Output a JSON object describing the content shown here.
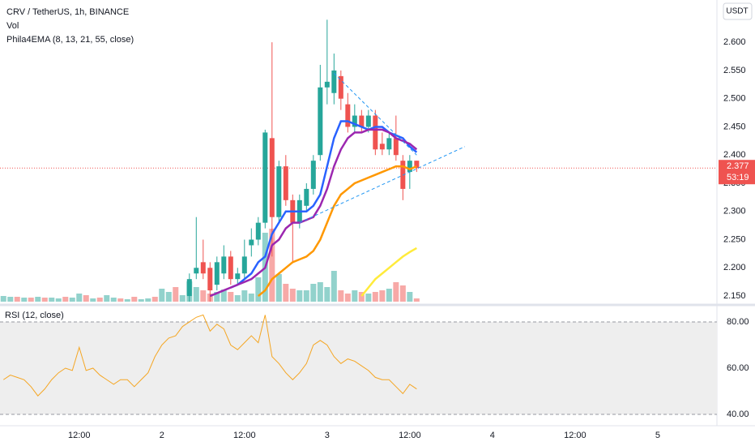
{
  "chart_data": {
    "type": "candlestick",
    "title": "CRV / TetherUS, 1h, BINANCE",
    "volume_label": "Vol",
    "indicator_label": "Phila4EMA (8, 13, 21, 55, close)",
    "currency": "USDT",
    "last_price": 2.377,
    "countdown": "53:19",
    "color_up": "#26a69a",
    "color_down": "#ef5350",
    "xlim": [
      -23.5,
      80.6
    ],
    "xticks": [
      {
        "value": -12,
        "label": "12:00"
      },
      {
        "value": 0,
        "label": "2"
      },
      {
        "value": 12,
        "label": "12:00"
      },
      {
        "value": 24,
        "label": "3"
      },
      {
        "value": 36,
        "label": "12:00"
      },
      {
        "value": 48,
        "label": "4"
      },
      {
        "value": 60,
        "label": "12:00"
      },
      {
        "value": 72,
        "label": "5"
      }
    ],
    "ylim": [
      2.14,
      2.675
    ],
    "yticks": [
      {
        "value": 2.15,
        "label": "2.150"
      },
      {
        "value": 2.2,
        "label": "2.200"
      },
      {
        "value": 2.25,
        "label": "2.250"
      },
      {
        "value": 2.3,
        "label": "2.300"
      },
      {
        "value": 2.35,
        "label": "2.350"
      },
      {
        "value": 2.4,
        "label": "2.400"
      },
      {
        "value": 2.45,
        "label": "2.450"
      },
      {
        "value": 2.5,
        "label": "2.500"
      },
      {
        "value": 2.55,
        "label": "2.550"
      },
      {
        "value": 2.6,
        "label": "2.600"
      }
    ],
    "candles": {
      "x": [
        4,
        5,
        6,
        7,
        8,
        9,
        10,
        11,
        12,
        13,
        14,
        15,
        16,
        17,
        18,
        19,
        20,
        21,
        22,
        23,
        24,
        25,
        26,
        27,
        28,
        29,
        30,
        31,
        32,
        33,
        34,
        35,
        36,
        37
      ],
      "open": [
        2.15,
        2.19,
        2.21,
        2.2,
        2.17,
        2.19,
        2.22,
        2.18,
        2.19,
        2.24,
        2.25,
        2.28,
        2.43,
        2.29,
        2.38,
        2.32,
        2.28,
        2.31,
        2.34,
        2.4,
        2.52,
        2.51,
        2.54,
        2.49,
        2.45,
        2.47,
        2.45,
        2.47,
        2.42,
        2.41,
        2.43,
        2.39,
        2.37,
        2.39
      ],
      "high": [
        2.19,
        2.29,
        2.25,
        2.21,
        2.22,
        2.24,
        2.23,
        2.2,
        2.25,
        2.27,
        2.29,
        2.445,
        2.6,
        2.39,
        2.4,
        2.33,
        2.33,
        2.35,
        2.4,
        2.56,
        2.64,
        2.58,
        2.55,
        2.51,
        2.49,
        2.48,
        2.48,
        2.48,
        2.44,
        2.44,
        2.47,
        2.4,
        2.4,
        2.39
      ],
      "low": [
        2.14,
        2.18,
        2.18,
        2.14,
        2.16,
        2.18,
        2.17,
        2.17,
        2.18,
        2.22,
        2.24,
        2.27,
        2.22,
        2.28,
        2.31,
        2.21,
        2.27,
        2.3,
        2.33,
        2.39,
        2.49,
        2.49,
        2.48,
        2.44,
        2.44,
        2.44,
        2.44,
        2.4,
        2.4,
        2.4,
        2.39,
        2.32,
        2.34,
        2.37
      ],
      "close": [
        2.18,
        2.2,
        2.19,
        2.16,
        2.21,
        2.22,
        2.18,
        2.19,
        2.22,
        2.25,
        2.28,
        2.44,
        2.29,
        2.38,
        2.32,
        2.28,
        2.32,
        2.34,
        2.39,
        2.52,
        2.53,
        2.55,
        2.5,
        2.45,
        2.47,
        2.45,
        2.47,
        2.41,
        2.41,
        2.43,
        2.4,
        2.34,
        2.39,
        2.377
      ]
    },
    "volume": {
      "x": [
        -23,
        -22,
        -21,
        -20,
        -19,
        -18,
        -17,
        -16,
        -15,
        -14,
        -13,
        -12,
        -11,
        -10,
        -9,
        -8,
        -7,
        -6,
        -5,
        -4,
        -3,
        -2,
        -1,
        0,
        1,
        2,
        3,
        4,
        5,
        6,
        7,
        8,
        9,
        10,
        11,
        12,
        13,
        14,
        15,
        16,
        17,
        18,
        19,
        20,
        21,
        22,
        23,
        24,
        25,
        26,
        27,
        28,
        29,
        30,
        31,
        32,
        33,
        34,
        35,
        36,
        37
      ],
      "values": [
        7,
        6,
        6,
        5,
        5,
        6,
        5,
        5,
        4,
        6,
        5,
        10,
        8,
        4,
        5,
        8,
        5,
        4,
        3,
        6,
        3,
        4,
        6,
        16,
        12,
        18,
        8,
        25,
        18,
        14,
        10,
        12,
        15,
        12,
        8,
        14,
        10,
        30,
        85,
        90,
        34,
        22,
        16,
        14,
        14,
        22,
        24,
        18,
        38,
        14,
        10,
        14,
        12,
        10,
        12,
        14,
        16,
        24,
        20,
        12,
        4
      ],
      "up": [
        true,
        true,
        false,
        true,
        false,
        true,
        false,
        true,
        true,
        false,
        true,
        true,
        false,
        true,
        false,
        true,
        true,
        false,
        true,
        false,
        true,
        true,
        false,
        true,
        true,
        false,
        true,
        true,
        true,
        false,
        false,
        true,
        true,
        false,
        true,
        true,
        true,
        true,
        true,
        false,
        true,
        false,
        false,
        true,
        true,
        true,
        true,
        true,
        true,
        false,
        false,
        true,
        false,
        true,
        false,
        false,
        true,
        false,
        false,
        true,
        false
      ]
    },
    "series": [
      {
        "color": "#2962ff",
        "x": [
          10,
          11,
          12,
          13,
          14,
          15,
          16,
          17,
          18,
          19,
          20,
          21,
          22,
          23,
          24,
          25,
          26,
          27,
          28,
          29,
          30,
          31,
          32,
          33,
          34,
          35,
          36,
          37
        ],
        "values": [
          2.165,
          2.17,
          2.18,
          2.19,
          2.21,
          2.22,
          2.26,
          2.28,
          2.3,
          2.3,
          2.3,
          2.3,
          2.31,
          2.33,
          2.38,
          2.43,
          2.46,
          2.46,
          2.455,
          2.45,
          2.445,
          2.45,
          2.45,
          2.44,
          2.435,
          2.43,
          2.415,
          2.405
        ]
      },
      {
        "color": "#9c27b0",
        "x": [
          7,
          8,
          9,
          10,
          11,
          12,
          13,
          14,
          15,
          16,
          17,
          18,
          19,
          20,
          21,
          22,
          23,
          24,
          25,
          26,
          27,
          28,
          29,
          30,
          31,
          32,
          33,
          34,
          35,
          36,
          37
        ],
        "values": [
          2.15,
          2.155,
          2.16,
          2.165,
          2.17,
          2.175,
          2.18,
          2.19,
          2.2,
          2.24,
          2.25,
          2.27,
          2.28,
          2.28,
          2.285,
          2.29,
          2.31,
          2.34,
          2.38,
          2.41,
          2.43,
          2.44,
          2.44,
          2.445,
          2.445,
          2.445,
          2.44,
          2.43,
          2.425,
          2.42,
          2.41
        ]
      },
      {
        "color": "#ff9800",
        "x": [
          14,
          15,
          16,
          17,
          18,
          19,
          20,
          21,
          22,
          23,
          24,
          25,
          26,
          27,
          28,
          29,
          30,
          31,
          32,
          33,
          34,
          35,
          36,
          37
        ],
        "values": [
          2.15,
          2.16,
          2.18,
          2.19,
          2.2,
          2.21,
          2.215,
          2.22,
          2.23,
          2.25,
          2.28,
          2.31,
          2.33,
          2.34,
          2.35,
          2.355,
          2.36,
          2.365,
          2.37,
          2.375,
          2.38,
          2.38,
          2.375,
          2.38
        ]
      },
      {
        "color": "#ffeb3b",
        "x": [
          29,
          30,
          31,
          32,
          33,
          34,
          35,
          36,
          37
        ],
        "values": [
          2.15,
          2.165,
          2.18,
          2.19,
          2.2,
          2.21,
          2.22,
          2.228,
          2.235
        ]
      }
    ],
    "trendlines": [
      {
        "color": "#2196f3",
        "x": [
          25,
          37
        ],
        "values": [
          2.545,
          2.4
        ]
      },
      {
        "color": "#2196f3",
        "x": [
          20,
          44
        ],
        "values": [
          2.28,
          2.415
        ]
      }
    ],
    "rsi": {
      "title": "RSI (12, close)",
      "color": "#f5a623",
      "ylim": [
        35.1,
        84.9
      ],
      "yticks": [
        {
          "value": 40,
          "label": "40.00"
        },
        {
          "value": 60,
          "label": "60.00"
        },
        {
          "value": 80,
          "label": "80.00"
        }
      ],
      "x": [
        -23,
        -22,
        -21,
        -20,
        -19,
        -18,
        -17,
        -16,
        -15,
        -14,
        -13,
        -12,
        -11,
        -10,
        -9,
        -8,
        -7,
        -6,
        -5,
        -4,
        -3,
        -2,
        -1,
        0,
        1,
        2,
        3,
        4,
        5,
        6,
        7,
        8,
        9,
        10,
        11,
        12,
        13,
        14,
        15,
        16,
        17,
        18,
        19,
        20,
        21,
        22,
        23,
        24,
        25,
        26,
        27,
        28,
        29,
        30,
        31,
        32,
        33,
        34,
        35,
        36,
        37
      ],
      "values": [
        55,
        57,
        56,
        55,
        52,
        48,
        51,
        55,
        58,
        60,
        59,
        69,
        59,
        60,
        57,
        55,
        53,
        55,
        55,
        52,
        55,
        58,
        65,
        70,
        73,
        74,
        78,
        80,
        82,
        83,
        76,
        79,
        77,
        70,
        68,
        71,
        74,
        71,
        83,
        65,
        62,
        58,
        55,
        58,
        62,
        70,
        72,
        70,
        65,
        62,
        64,
        63,
        61,
        59,
        56,
        55,
        55,
        52,
        49,
        53,
        51
      ]
    }
  }
}
